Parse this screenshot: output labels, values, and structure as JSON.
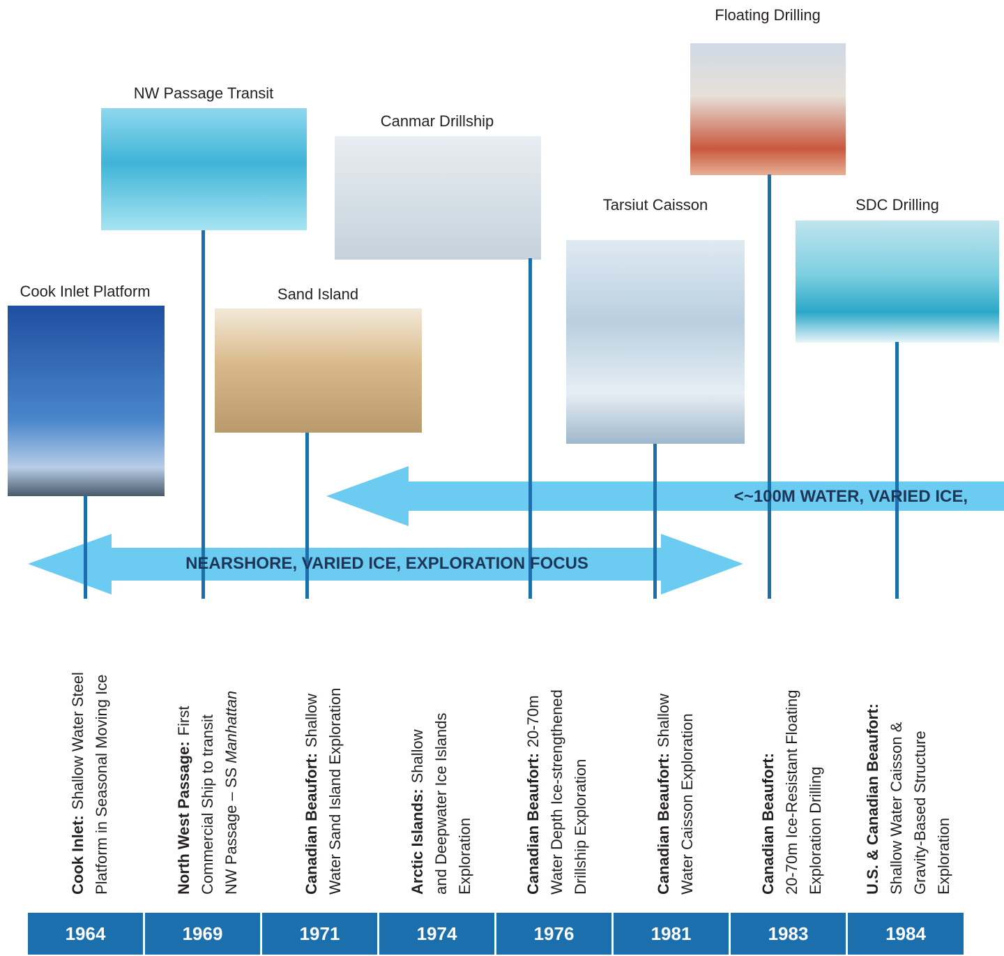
{
  "photos": [
    {
      "label": "Cook Inlet Platform"
    },
    {
      "label": "NW Passage Transit"
    },
    {
      "label": "Sand Island"
    },
    {
      "label": "Canmar Drillship"
    },
    {
      "label": "Tarsiut Caisson"
    },
    {
      "label": "Floating Drilling"
    },
    {
      "label": "SDC Drilling"
    }
  ],
  "arrows": [
    {
      "label": "NEARSHORE, VARIED ICE, EXPLORATION FOCUS"
    },
    {
      "label": "<~100M WATER, VARIED ICE,"
    }
  ],
  "entries": [
    {
      "year": "1964",
      "heading": "Cook Inlet:",
      "lines": [
        "Shallow Water Steel",
        "Platform in Seasonal Moving Ice"
      ]
    },
    {
      "year": "1969",
      "heading": "North West Passage:",
      "lines": [
        "First",
        "Commercial Ship to transit",
        "NW Passage – SS"
      ],
      "italic": "Manhattan"
    },
    {
      "year": "1971",
      "heading": "Canadian Beaufort:",
      "lines": [
        "Shallow",
        "Water Sand Island Exploration"
      ]
    },
    {
      "year": "1974",
      "heading": "Arctic Islands:",
      "lines": [
        "Shallow",
        "and Deepwater Ice Islands",
        "Exploration"
      ]
    },
    {
      "year": "1976",
      "heading": "Canadian Beaufort:",
      "lines": [
        "20-70m",
        "Water Depth Ice-strengthened",
        "Drillship Exploration"
      ]
    },
    {
      "year": "1981",
      "heading": "Canadian Beaufort:",
      "lines": [
        "Shallow",
        "Water Caisson Exploration"
      ]
    },
    {
      "year": "1983",
      "heading": "Canadian Beaufort:",
      "lines": [
        "",
        "20-70m Ice-Resistant Floating",
        "Exploration Drilling"
      ]
    },
    {
      "year": "1984",
      "heading": "U.S. & Canadian Beaufort:",
      "lines": [
        "",
        "Shallow Water Caisson &",
        "Gravity-Based Structure",
        "Exploration"
      ]
    }
  ]
}
